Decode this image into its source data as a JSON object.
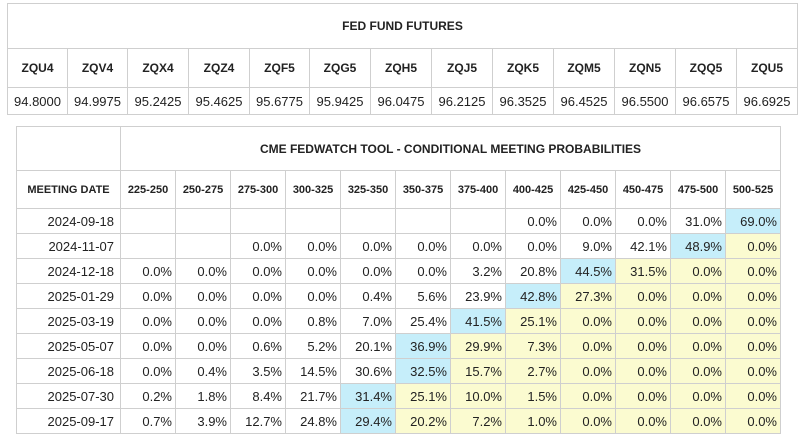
{
  "futures": {
    "title": "FED FUND FUTURES",
    "codes": [
      "ZQU4",
      "ZQV4",
      "ZQX4",
      "ZQZ4",
      "ZQF5",
      "ZQG5",
      "ZQH5",
      "ZQJ5",
      "ZQK5",
      "ZQM5",
      "ZQN5",
      "ZQQ5",
      "ZQU5"
    ],
    "prices": [
      "94.8000",
      "94.9975",
      "95.2425",
      "95.4625",
      "95.6775",
      "95.9425",
      "96.0475",
      "96.2125",
      "96.3525",
      "96.4525",
      "96.5500",
      "96.6575",
      "96.6925"
    ]
  },
  "fedwatch": {
    "title": "CME FEDWATCH TOOL - CONDITIONAL MEETING PROBABILITIES",
    "date_header": "MEETING DATE",
    "ranges": [
      "225-250",
      "250-275",
      "275-300",
      "300-325",
      "325-350",
      "350-375",
      "375-400",
      "400-425",
      "425-450",
      "450-475",
      "475-500",
      "500-525"
    ],
    "colors": {
      "highlight": "#c6eefa",
      "above": "#fbfbd0",
      "plain": "#ffffff"
    },
    "rows": [
      {
        "date": "2024-09-18",
        "values": [
          "",
          "",
          "",
          "",
          "",
          "",
          "",
          "0.0%",
          "0.0%",
          "0.0%",
          "31.0%",
          "69.0%"
        ],
        "max": 11
      },
      {
        "date": "2024-11-07",
        "values": [
          "",
          "",
          "0.0%",
          "0.0%",
          "0.0%",
          "0.0%",
          "0.0%",
          "0.0%",
          "9.0%",
          "42.1%",
          "48.9%",
          "0.0%"
        ],
        "max": 10
      },
      {
        "date": "2024-12-18",
        "values": [
          "0.0%",
          "0.0%",
          "0.0%",
          "0.0%",
          "0.0%",
          "0.0%",
          "3.2%",
          "20.8%",
          "44.5%",
          "31.5%",
          "0.0%",
          "0.0%"
        ],
        "max": 8
      },
      {
        "date": "2025-01-29",
        "values": [
          "0.0%",
          "0.0%",
          "0.0%",
          "0.0%",
          "0.4%",
          "5.6%",
          "23.9%",
          "42.8%",
          "27.3%",
          "0.0%",
          "0.0%",
          "0.0%"
        ],
        "max": 7
      },
      {
        "date": "2025-03-19",
        "values": [
          "0.0%",
          "0.0%",
          "0.0%",
          "0.8%",
          "7.0%",
          "25.4%",
          "41.5%",
          "25.1%",
          "0.0%",
          "0.0%",
          "0.0%",
          "0.0%"
        ],
        "max": 6
      },
      {
        "date": "2025-05-07",
        "values": [
          "0.0%",
          "0.0%",
          "0.6%",
          "5.2%",
          "20.1%",
          "36.9%",
          "29.9%",
          "7.3%",
          "0.0%",
          "0.0%",
          "0.0%",
          "0.0%"
        ],
        "max": 5
      },
      {
        "date": "2025-06-18",
        "values": [
          "0.0%",
          "0.4%",
          "3.5%",
          "14.5%",
          "30.6%",
          "32.5%",
          "15.7%",
          "2.7%",
          "0.0%",
          "0.0%",
          "0.0%",
          "0.0%"
        ],
        "max": 5
      },
      {
        "date": "2025-07-30",
        "values": [
          "0.2%",
          "1.8%",
          "8.4%",
          "21.7%",
          "31.4%",
          "25.1%",
          "10.0%",
          "1.5%",
          "0.0%",
          "0.0%",
          "0.0%",
          "0.0%"
        ],
        "max": 4
      },
      {
        "date": "2025-09-17",
        "values": [
          "0.7%",
          "3.9%",
          "12.7%",
          "24.8%",
          "29.4%",
          "20.2%",
          "7.2%",
          "1.0%",
          "0.0%",
          "0.0%",
          "0.0%",
          "0.0%"
        ],
        "max": 4
      }
    ]
  }
}
